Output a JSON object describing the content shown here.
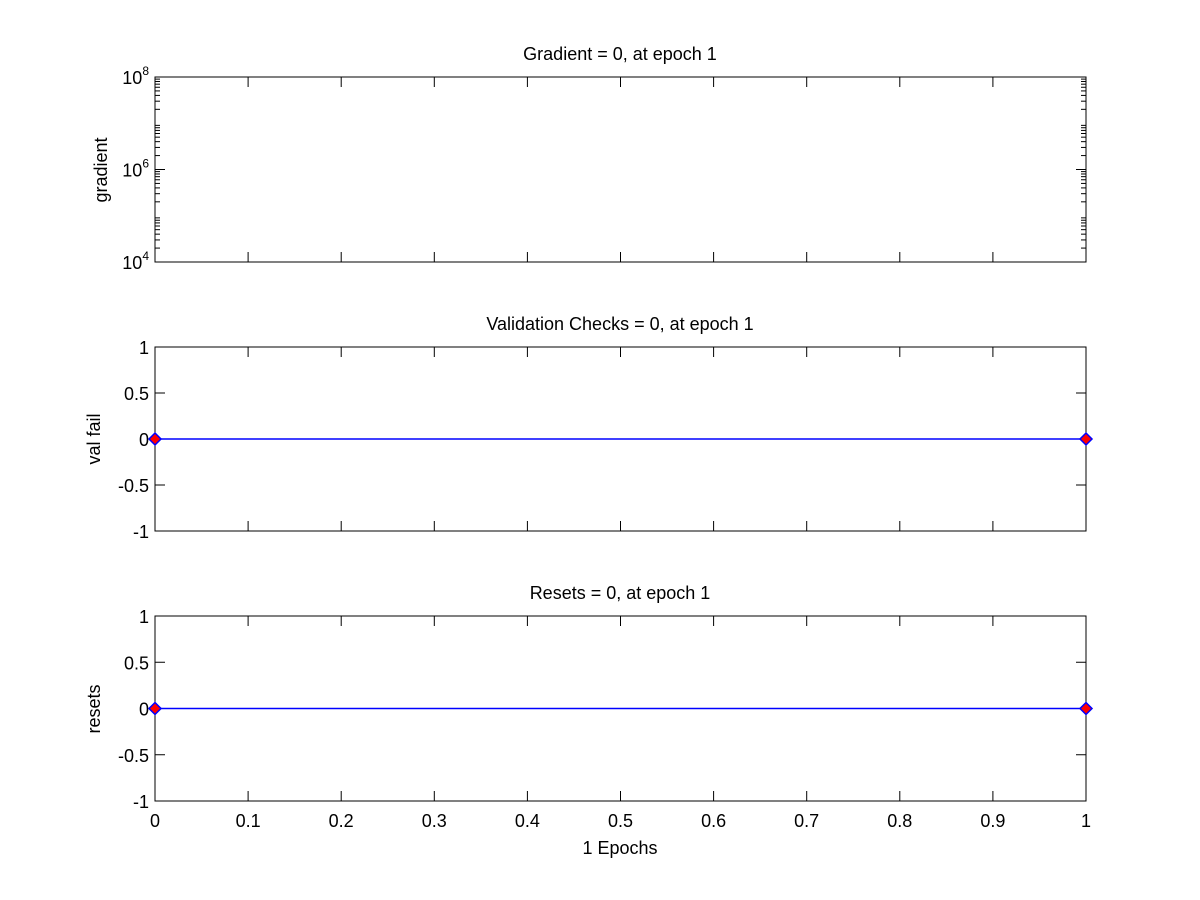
{
  "figure": {
    "background": "#ffffff",
    "axis_color": "#000000"
  },
  "chart_data": [
    {
      "type": "line",
      "title": "Gradient = 0, at epoch 1",
      "ylabel": "gradient",
      "xlabel": "",
      "y_scale": "log",
      "ylim": [
        10000,
        100000000
      ],
      "xlim": [
        0,
        1
      ],
      "y_ticks": [
        {
          "base": "10",
          "exp": "4"
        },
        {
          "base": "10",
          "exp": "6"
        },
        {
          "base": "10",
          "exp": "8"
        }
      ],
      "x_ticks": [
        0,
        0.1,
        0.2,
        0.3,
        0.4,
        0.5,
        0.6,
        0.7,
        0.8,
        0.9,
        1
      ],
      "show_x_tick_labels": false,
      "series": [
        {
          "x": [
            0,
            1
          ],
          "y": [
            0,
            0
          ],
          "color": "#0000ff",
          "marker": "none"
        }
      ]
    },
    {
      "type": "line",
      "title": "Validation Checks = 0, at epoch 1",
      "ylabel": "val fail",
      "xlabel": "",
      "y_scale": "linear",
      "ylim": [
        -1,
        1
      ],
      "xlim": [
        0,
        1
      ],
      "y_ticks": [
        "-1",
        "-0.5",
        "0",
        "0.5",
        "1"
      ],
      "y_tick_values": [
        -1,
        -0.5,
        0,
        0.5,
        1
      ],
      "x_ticks": [
        0,
        0.1,
        0.2,
        0.3,
        0.4,
        0.5,
        0.6,
        0.7,
        0.8,
        0.9,
        1
      ],
      "show_x_tick_labels": false,
      "series": [
        {
          "x": [
            0,
            1
          ],
          "y": [
            0,
            0
          ],
          "color": "#0000ff",
          "marker": "diamond",
          "marker_face": "#ff0000"
        }
      ]
    },
    {
      "type": "line",
      "title": "Resets = 0, at epoch 1",
      "ylabel": "resets",
      "xlabel": "1 Epochs",
      "y_scale": "linear",
      "ylim": [
        -1,
        1
      ],
      "xlim": [
        0,
        1
      ],
      "y_ticks": [
        "-1",
        "-0.5",
        "0",
        "0.5",
        "1"
      ],
      "y_tick_values": [
        -1,
        -0.5,
        0,
        0.5,
        1
      ],
      "x_ticks": [
        0,
        0.1,
        0.2,
        0.3,
        0.4,
        0.5,
        0.6,
        0.7,
        0.8,
        0.9,
        1
      ],
      "x_tick_labels": [
        "0",
        "0.1",
        "0.2",
        "0.3",
        "0.4",
        "0.5",
        "0.6",
        "0.7",
        "0.8",
        "0.9",
        "1"
      ],
      "show_x_tick_labels": true,
      "series": [
        {
          "x": [
            0,
            1
          ],
          "y": [
            0,
            0
          ],
          "color": "#0000ff",
          "marker": "diamond",
          "marker_face": "#ff0000"
        }
      ]
    }
  ]
}
